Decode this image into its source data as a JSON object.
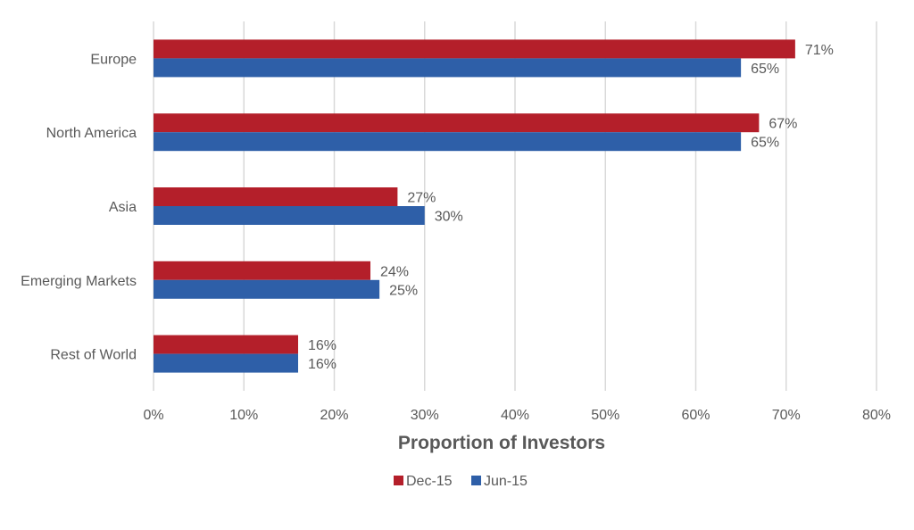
{
  "chart_data": {
    "type": "bar",
    "orientation": "horizontal",
    "categories": [
      "Europe",
      "North America",
      "Asia",
      "Emerging Markets",
      "Rest of World"
    ],
    "series": [
      {
        "name": "Dec-15",
        "color": "#b41f2a",
        "values": [
          71,
          67,
          27,
          24,
          16
        ]
      },
      {
        "name": "Jun-15",
        "color": "#2e5fa8",
        "values": [
          65,
          65,
          30,
          25,
          16
        ]
      }
    ],
    "xlabel": "Proportion of Investors",
    "xlim": [
      0,
      80
    ],
    "xticks": [
      0,
      10,
      20,
      30,
      40,
      50,
      60,
      70,
      80
    ],
    "tick_suffix": "%",
    "grid": "vertical",
    "legend_position": "bottom"
  }
}
